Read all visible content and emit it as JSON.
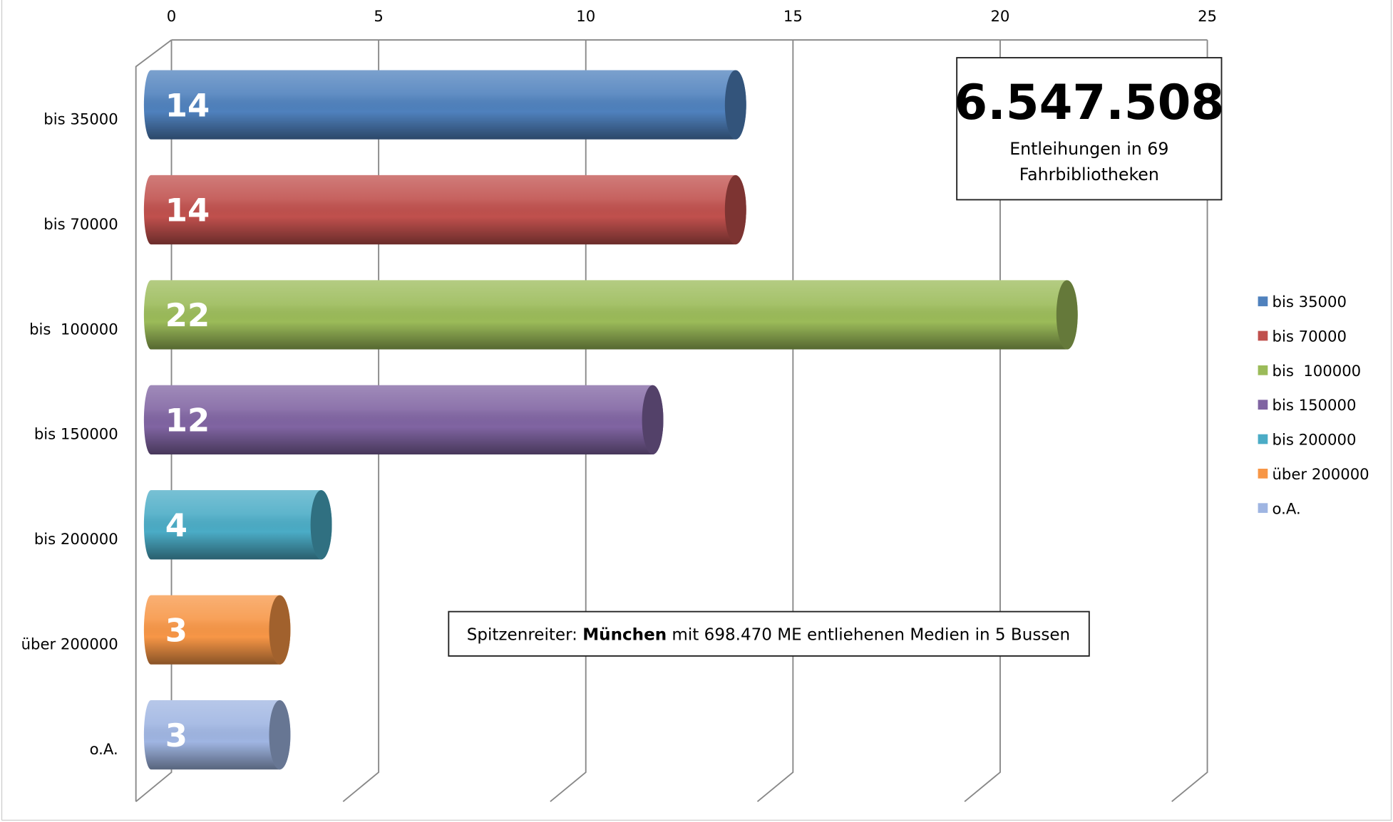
{
  "chart_data": {
    "type": "bar",
    "categories": [
      "bis 35000",
      "bis 70000",
      "bis  100000",
      "bis 150000",
      "bis 200000",
      "über 200000",
      "o.A."
    ],
    "values": [
      14,
      14,
      22,
      12,
      4,
      3,
      3
    ],
    "colors": [
      "#4f81bd",
      "#c0504d",
      "#9bbb59",
      "#8064a2",
      "#4bacc6",
      "#f79646",
      "#9fb5e2"
    ],
    "xlim": [
      0,
      25
    ],
    "xticks": [
      0,
      5,
      10,
      15,
      20,
      25
    ],
    "grid": true,
    "legend": "right",
    "annotations": [
      {
        "big": "6.547.508",
        "lines": [
          "Entleihungen in 69",
          "Fahrbibliotheken"
        ]
      },
      {
        "prefix": "Spitzenreiter: ",
        "bold": "München",
        "suffix": " mit 698.470 ME entliehenen Medien in 5 Bussen"
      }
    ]
  }
}
